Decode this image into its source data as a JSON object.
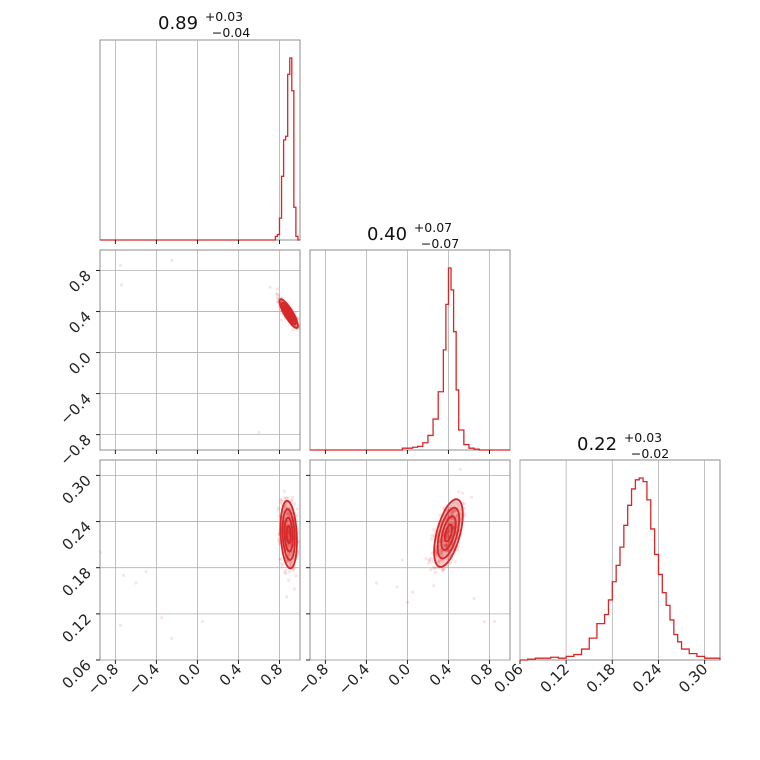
{
  "figure": {
    "type": "corner-plot",
    "color": "#d62728",
    "grid": true
  },
  "parameters": [
    {
      "median": "0.89",
      "plus": "+0.03",
      "minus": "−0.04",
      "range": [
        -0.95,
        1.0
      ],
      "ticks": [
        {
          "v": -0.8,
          "label": "−0.8"
        },
        {
          "v": -0.4,
          "label": "−0.4"
        },
        {
          "v": 0.0,
          "label": "0.0"
        },
        {
          "v": 0.4,
          "label": "0.4"
        },
        {
          "v": 0.8,
          "label": "0.8"
        }
      ]
    },
    {
      "median": "0.40",
      "plus": "+0.07",
      "minus": "−0.07",
      "range": [
        -0.95,
        1.0
      ],
      "ticks": [
        {
          "v": -0.8,
          "label": "−0.8"
        },
        {
          "v": -0.4,
          "label": "−0.4"
        },
        {
          "v": 0.0,
          "label": "0.0"
        },
        {
          "v": 0.4,
          "label": "0.4"
        },
        {
          "v": 0.8,
          "label": "0.8"
        }
      ]
    },
    {
      "median": "0.22",
      "plus": "+0.03",
      "minus": "−0.02",
      "range": [
        0.06,
        0.32
      ],
      "ticks": [
        {
          "v": 0.06,
          "label": "0.06"
        },
        {
          "v": 0.12,
          "label": "0.12"
        },
        {
          "v": 0.18,
          "label": "0.18"
        },
        {
          "v": 0.24,
          "label": "0.24"
        },
        {
          "v": 0.3,
          "label": "0.30"
        }
      ]
    }
  ],
  "chart_data": [
    {
      "type": "histogram",
      "parameter": 0,
      "bin_edges": [
        0.76,
        0.78,
        0.8,
        0.82,
        0.84,
        0.86,
        0.88,
        0.9,
        0.92,
        0.94,
        0.96,
        0.98,
        1.0
      ],
      "counts": [
        0.02,
        0.03,
        0.12,
        0.35,
        0.55,
        0.57,
        0.91,
        1.0,
        0.82,
        0.18,
        0.02,
        0.0
      ],
      "title": "0.89 +0.03 −0.04"
    },
    {
      "type": "histogram",
      "parameter": 1,
      "bin_edges": [
        -0.05,
        0.0,
        0.05,
        0.1,
        0.15,
        0.2,
        0.25,
        0.3,
        0.35,
        0.375,
        0.4,
        0.425,
        0.45,
        0.475,
        0.5,
        0.55,
        0.6,
        0.65,
        0.7
      ],
      "counts": [
        0.01,
        0.01,
        0.015,
        0.02,
        0.04,
        0.08,
        0.17,
        0.32,
        0.55,
        0.8,
        1.0,
        0.88,
        0.65,
        0.33,
        0.11,
        0.03,
        0.01,
        0.005
      ],
      "title": "0.40 +0.07 −0.07"
    },
    {
      "type": "histogram",
      "parameter": 2,
      "bin_edges": [
        0.06,
        0.07,
        0.08,
        0.09,
        0.1,
        0.11,
        0.12,
        0.13,
        0.14,
        0.15,
        0.16,
        0.17,
        0.175,
        0.18,
        0.185,
        0.19,
        0.195,
        0.2,
        0.205,
        0.21,
        0.215,
        0.22,
        0.225,
        0.23,
        0.235,
        0.24,
        0.245,
        0.25,
        0.255,
        0.26,
        0.265,
        0.27,
        0.28,
        0.29,
        0.3,
        0.32
      ],
      "counts": [
        0.0,
        0.005,
        0.01,
        0.01,
        0.015,
        0.01,
        0.02,
        0.03,
        0.06,
        0.12,
        0.2,
        0.25,
        0.33,
        0.43,
        0.52,
        0.62,
        0.74,
        0.85,
        0.94,
        0.99,
        1.0,
        0.98,
        0.88,
        0.72,
        0.58,
        0.47,
        0.37,
        0.3,
        0.22,
        0.14,
        0.1,
        0.06,
        0.035,
        0.02,
        0.01
      ],
      "title": "0.22 +0.03 −0.02"
    },
    {
      "type": "scatter-contour",
      "x_parameter": 0,
      "y_parameter": 1,
      "center": [
        0.89,
        0.38
      ],
      "sigma": [
        0.045,
        0.07
      ],
      "correlation": -0.85,
      "outliers": [
        [
          -0.75,
          0.85
        ],
        [
          -0.74,
          0.66
        ],
        [
          -0.25,
          0.9
        ],
        [
          0.6,
          -0.78
        ],
        [
          0.78,
          0.62
        ]
      ]
    },
    {
      "type": "scatter-contour",
      "x_parameter": 0,
      "y_parameter": 2,
      "center": [
        0.89,
        0.223
      ],
      "sigma": [
        0.04,
        0.022
      ],
      "correlation": -0.2,
      "outliers": [
        [
          -0.95,
          0.2
        ],
        [
          -0.75,
          0.105
        ],
        [
          -0.72,
          0.17
        ],
        [
          -0.5,
          0.175
        ],
        [
          -0.35,
          0.115
        ],
        [
          -0.25,
          0.088
        ],
        [
          0.05,
          0.11
        ],
        [
          -0.6,
          0.16
        ]
      ]
    },
    {
      "type": "scatter-contour",
      "x_parameter": 1,
      "y_parameter": 2,
      "center": [
        0.4,
        0.225
      ],
      "sigma": [
        0.07,
        0.022
      ],
      "correlation": 0.55,
      "outliers": [
        [
          -0.3,
          0.16
        ],
        [
          -0.1,
          0.155
        ],
        [
          0.0,
          0.135
        ],
        [
          0.05,
          0.148
        ],
        [
          -0.05,
          0.19
        ],
        [
          0.75,
          0.11
        ],
        [
          0.65,
          0.14
        ],
        [
          0.85,
          0.11
        ]
      ]
    }
  ]
}
